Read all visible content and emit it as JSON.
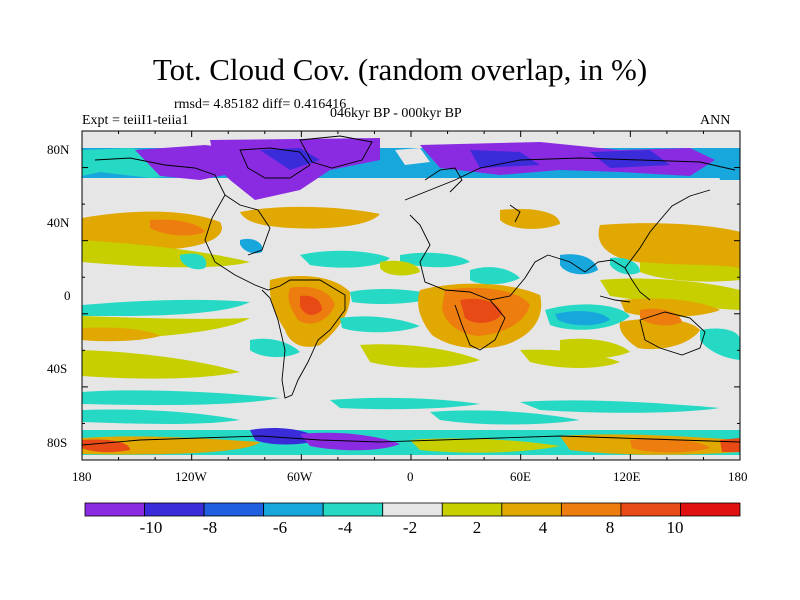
{
  "title": "Tot. Cloud Cov. (random overlap, in %)",
  "stats": "rmsd= 4.85182 diff= 0.416416",
  "experiment": "Expt = teiiI1-teiia1",
  "period": "046kyr BP - 000kyr BP",
  "season": "ANN",
  "lat_ticks": [
    "80N",
    "40N",
    "0",
    "40S",
    "80S"
  ],
  "lon_ticks": [
    "180",
    "120W",
    "60W",
    "0",
    "60E",
    "120E",
    "180"
  ],
  "colorbar": {
    "colors": [
      "#8a2be2",
      "#3a2cd9",
      "#1f5fe0",
      "#17a7dc",
      "#26d9c4",
      "#e6e6e6",
      "#c8cf00",
      "#e0a800",
      "#ee7d10",
      "#e84a15",
      "#e01010"
    ],
    "labels": [
      "-10",
      "-8",
      "-6",
      "-4",
      "-2",
      "2",
      "4",
      "8",
      "10"
    ]
  },
  "chart_data": {
    "type": "heatmap",
    "title": "Tot. Cloud Cov. (random overlap, in %)",
    "variable": "Total cloud cover difference",
    "units": "%",
    "rmsd": 4.85182,
    "diff": 0.416416,
    "xlim": [
      -180,
      180
    ],
    "ylim": [
      -90,
      90
    ],
    "contour_levels": [
      -10,
      -8,
      -6,
      -4,
      -2,
      2,
      4,
      8,
      10
    ]
  }
}
